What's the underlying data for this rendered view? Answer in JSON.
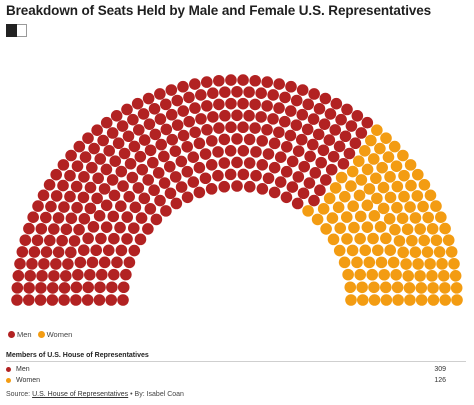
{
  "title": "Breakdown of Seats Held by Male and Female U.S. Representatives",
  "colors": {
    "men": "#b22222",
    "women": "#f39c12"
  },
  "legend": [
    {
      "label": "Men",
      "color": "#b22222"
    },
    {
      "label": "Women",
      "color": "#f39c12"
    }
  ],
  "table": {
    "title": "Members of U.S. House of Representatives",
    "rows": [
      {
        "label": "Men",
        "value": "309",
        "color": "#b22222"
      },
      {
        "label": "Women",
        "value": "126",
        "color": "#f39c12"
      }
    ]
  },
  "source": {
    "prefix": "Source:",
    "link_text": "U.S. House of Representatives",
    "suffix": "• By: Isabel Coan"
  },
  "chart_data": {
    "type": "parliament",
    "title": "Breakdown of Seats Held by Male and Female U.S. Representatives",
    "total_seats": 435,
    "series": [
      {
        "name": "Men",
        "value": 309,
        "color": "#b22222"
      },
      {
        "name": "Women",
        "value": 126,
        "color": "#f39c12"
      }
    ]
  }
}
